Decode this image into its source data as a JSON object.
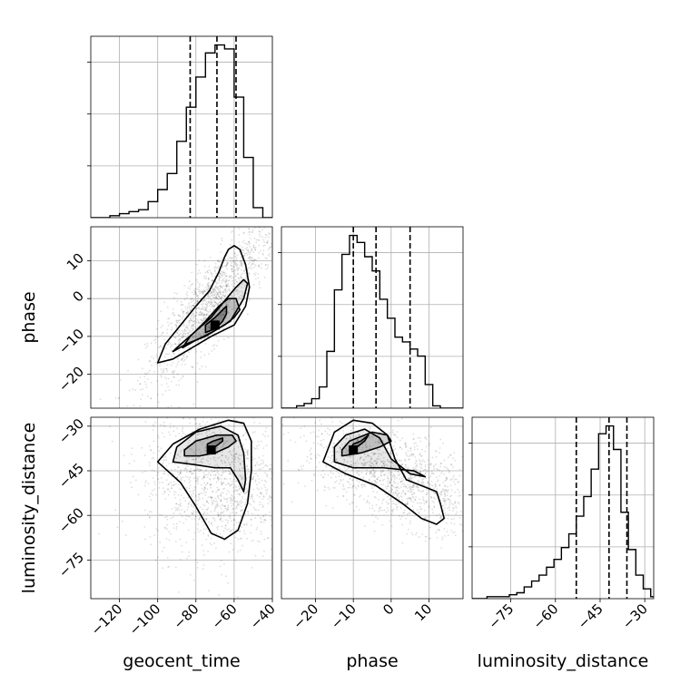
{
  "chart_data": {
    "type": "corner",
    "parameters": [
      "geocent_time",
      "phase",
      "luminosity_distance"
    ],
    "axis_labels": {
      "geocent_time": "geocent_time",
      "phase": "phase",
      "luminosity_distance": "luminosity_distance"
    },
    "ranges": {
      "geocent_time": [
        -135,
        -40
      ],
      "phase": [
        -29,
        19
      ],
      "luminosity_distance": [
        -88,
        -27
      ]
    },
    "ticks": {
      "geocent_time": [
        -120,
        -100,
        -80,
        -60,
        -40
      ],
      "phase": [
        -20,
        -10,
        0,
        10
      ],
      "phase_y": [
        -20,
        -10,
        0,
        10
      ],
      "luminosity_distance": [
        -75,
        -60,
        -45,
        -30
      ]
    },
    "tick_labels": {
      "geocent_time": [
        "−120",
        "−100",
        "−80",
        "−60",
        "−40"
      ],
      "phase": [
        "−20",
        "−10",
        "0",
        "10"
      ],
      "phase_y": [
        "−20",
        "−10",
        "0",
        "10"
      ],
      "luminosity_distance": [
        "−75",
        "−60",
        "−45",
        "−30"
      ]
    },
    "grid": true,
    "histograms": {
      "geocent_time": {
        "bin_start": -135,
        "bin_width": 5,
        "counts": [
          0,
          0,
          1,
          2,
          3,
          4,
          8,
          14,
          22,
          38,
          55,
          70,
          82,
          86,
          84,
          60,
          30,
          5,
          0
        ],
        "quantiles": [
          -83,
          -69,
          -59
        ]
      },
      "phase": {
        "bin_start": -29,
        "bin_width": 2,
        "counts": [
          0,
          0,
          1,
          2,
          4,
          9,
          24,
          50,
          65,
          73,
          70,
          64,
          58,
          46,
          38,
          30,
          28,
          25,
          22,
          10,
          1,
          0,
          0,
          0
        ],
        "quantiles": [
          -10,
          -4,
          5
        ]
      },
      "luminosity_distance": {
        "bin_start": -88,
        "bin_width": 2.5,
        "counts": [
          0,
          0,
          1,
          1,
          1,
          2,
          3,
          6,
          9,
          12,
          16,
          20,
          26,
          33,
          42,
          52,
          66,
          84,
          88,
          76,
          44,
          25,
          12,
          5,
          1
        ],
        "quantiles": [
          -53,
          -42,
          -36
        ]
      }
    },
    "contours": {
      "geocent_time_vs_phase": {
        "contour_levels": [
          [
            [
              -75,
              -9
            ],
            [
              -70,
              -8
            ],
            [
              -66,
              -6
            ],
            [
              -64,
              -4
            ],
            [
              -64,
              -2
            ],
            [
              -70,
              -5
            ],
            [
              -75,
              -7
            ]
          ],
          [
            [
              -87,
              -13
            ],
            [
              -80,
              -11
            ],
            [
              -72,
              -9
            ],
            [
              -65,
              -7
            ],
            [
              -60,
              -5
            ],
            [
              -57,
              -3
            ],
            [
              -59,
              0
            ],
            [
              -63,
              0
            ],
            [
              -68,
              -2
            ],
            [
              -75,
              -6
            ],
            [
              -83,
              -10
            ]
          ],
          [
            [
              -92,
              -14
            ],
            [
              -85,
              -12
            ],
            [
              -75,
              -10
            ],
            [
              -62,
              -6
            ],
            [
              -55,
              0
            ],
            [
              -53,
              4
            ],
            [
              -55,
              5
            ],
            [
              -59,
              3
            ],
            [
              -64,
              0
            ],
            [
              -72,
              -5
            ],
            [
              -81,
              -9
            ],
            [
              -90,
              -13
            ]
          ],
          [
            [
              -100,
              -17
            ],
            [
              -92,
              -16
            ],
            [
              -82,
              -13
            ],
            [
              -72,
              -10
            ],
            [
              -60,
              -7
            ],
            [
              -54,
              -2
            ],
            [
              -52,
              3
            ],
            [
              -54,
              9
            ],
            [
              -57,
              13
            ],
            [
              -60,
              14
            ],
            [
              -63,
              13
            ],
            [
              -65,
              11
            ],
            [
              -68,
              7
            ],
            [
              -73,
              2
            ],
            [
              -80,
              -2
            ],
            [
              -88,
              -7
            ],
            [
              -96,
              -12
            ]
          ]
        ],
        "density_peak": [
          -70,
          -7
        ]
      },
      "geocent_time_vs_luminosity_distance": {
        "contour_levels": [
          [
            [
              -74,
              -38
            ],
            [
              -70,
              -37
            ],
            [
              -66,
              -35
            ],
            [
              -66,
              -34
            ],
            [
              -71,
              -35
            ],
            [
              -74,
              -36
            ]
          ],
          [
            [
              -86,
              -40
            ],
            [
              -78,
              -40
            ],
            [
              -70,
              -39
            ],
            [
              -63,
              -37
            ],
            [
              -59,
              -35
            ],
            [
              -61,
              -33
            ],
            [
              -69,
              -33
            ],
            [
              -80,
              -35
            ],
            [
              -86,
              -38
            ]
          ],
          [
            [
              -92,
              -42
            ],
            [
              -80,
              -43
            ],
            [
              -70,
              -44
            ],
            [
              -62,
              -44
            ],
            [
              -58,
              -48
            ],
            [
              -55,
              -52
            ],
            [
              -54,
              -48
            ],
            [
              -55,
              -39
            ],
            [
              -58,
              -33
            ],
            [
              -67,
              -30
            ],
            [
              -80,
              -32
            ],
            [
              -90,
              -37
            ]
          ],
          [
            [
              -100,
              -42
            ],
            [
              -88,
              -49
            ],
            [
              -80,
              -57
            ],
            [
              -72,
              -66
            ],
            [
              -65,
              -68
            ],
            [
              -58,
              -65
            ],
            [
              -53,
              -56
            ],
            [
              -51,
              -45
            ],
            [
              -51,
              -35
            ],
            [
              -55,
              -29
            ],
            [
              -63,
              -28
            ],
            [
              -78,
              -31
            ],
            [
              -92,
              -36
            ]
          ]
        ],
        "density_peak": [
          -72,
          -38
        ]
      },
      "phase_vs_luminosity_distance": {
        "contour_levels": [
          [
            [
              -11,
              -38
            ],
            [
              -9,
              -37
            ],
            [
              -7,
              -35
            ],
            [
              -6,
              -33
            ],
            [
              -8,
              -35
            ],
            [
              -10,
              -36
            ]
          ],
          [
            [
              -13,
              -40
            ],
            [
              -8,
              -39
            ],
            [
              -3,
              -37
            ],
            [
              0,
              -35
            ],
            [
              -1,
              -33
            ],
            [
              -5,
              -32
            ],
            [
              -11,
              -35
            ],
            [
              -13,
              -38
            ]
          ],
          [
            [
              -15,
              -42
            ],
            [
              -10,
              -44
            ],
            [
              -2,
              -44
            ],
            [
              6,
              -45
            ],
            [
              9,
              -47
            ],
            [
              5,
              -46
            ],
            [
              0,
              -41
            ],
            [
              -3,
              -34
            ],
            [
              -7,
              -31
            ],
            [
              -12,
              -33
            ],
            [
              -15,
              -37
            ]
          ],
          [
            [
              -18,
              -42
            ],
            [
              -12,
              -46
            ],
            [
              -4,
              -50
            ],
            [
              3,
              -56
            ],
            [
              8,
              -61
            ],
            [
              12,
              -63
            ],
            [
              14,
              -61
            ],
            [
              13,
              -56
            ],
            [
              12,
              -52
            ],
            [
              8,
              -50
            ],
            [
              4,
              -48
            ],
            [
              1,
              -41
            ],
            [
              -1,
              -33
            ],
            [
              -5,
              -29
            ],
            [
              -10,
              -28
            ],
            [
              -15,
              -32
            ]
          ]
        ],
        "density_peak": [
          -10,
          -38
        ]
      }
    }
  }
}
